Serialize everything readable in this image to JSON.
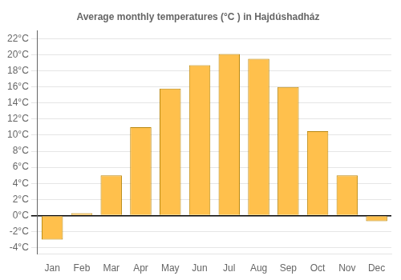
{
  "chart_data": {
    "type": "bar",
    "title": "Average monthly temperatures (°C ) in Hajdúshadház",
    "categories": [
      "Jan",
      "Feb",
      "Mar",
      "Apr",
      "May",
      "Jun",
      "Jul",
      "Aug",
      "Sep",
      "Oct",
      "Nov",
      "Dec"
    ],
    "values": [
      -3.0,
      0.3,
      5.0,
      11.0,
      15.8,
      18.7,
      20.1,
      19.5,
      16.0,
      10.5,
      5.0,
      -0.7
    ],
    "color": "#FFC04C",
    "ylim": [
      -4.8,
      23.0
    ],
    "yticks": [
      {
        "value": -4,
        "label": "-4°C"
      },
      {
        "value": -2,
        "label": "-2°C"
      },
      {
        "value": 0,
        "label": "0°C"
      },
      {
        "value": 2,
        "label": "2°C"
      },
      {
        "value": 4,
        "label": "4°C"
      },
      {
        "value": 6,
        "label": "6°C"
      },
      {
        "value": 8,
        "label": "8°C"
      },
      {
        "value": 10,
        "label": "10°C"
      },
      {
        "value": 12,
        "label": "12°C"
      },
      {
        "value": 14,
        "label": "14°C"
      },
      {
        "value": 16,
        "label": "16°C"
      },
      {
        "value": 18,
        "label": "18°C"
      },
      {
        "value": 20,
        "label": "20°C"
      },
      {
        "value": 22,
        "label": "22°C"
      }
    ],
    "grid": true
  }
}
